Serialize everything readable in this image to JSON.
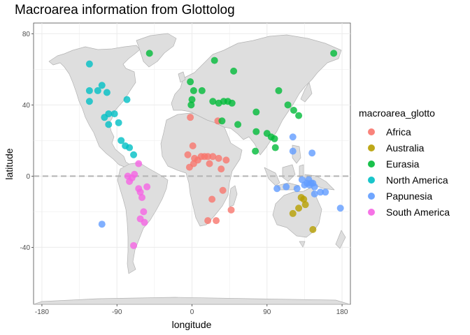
{
  "chart_data": {
    "type": "scatter",
    "title": "Macroarea information from Glottolog",
    "xlabel": "longitude",
    "ylabel": "latitude",
    "xlim": [
      -190,
      190
    ],
    "ylim": [
      -72,
      86
    ],
    "xticks": [
      -180,
      -90,
      0,
      90,
      180
    ],
    "yticks": [
      -40,
      0,
      40,
      80
    ],
    "xtick_labels": [
      "-180",
      "-90",
      "0",
      "90",
      "180"
    ],
    "ytick_labels": [
      "-40",
      "0",
      "40",
      "80"
    ],
    "grid": true,
    "reference_line": {
      "y": 0,
      "style": "dashed"
    },
    "basemap": "world countries",
    "legend": {
      "title": "macroarea_glotto",
      "placement": "right"
    },
    "series": [
      {
        "name": "Africa",
        "color": "#F8766D",
        "points": [
          [
            -2,
            33
          ],
          [
            -5,
            12
          ],
          [
            -3,
            5
          ],
          [
            1,
            17
          ],
          [
            3,
            10
          ],
          [
            2,
            7
          ],
          [
            7,
            9
          ],
          [
            11,
            11
          ],
          [
            15,
            11
          ],
          [
            19,
            11
          ],
          [
            21,
            7
          ],
          [
            25,
            11
          ],
          [
            31,
            31
          ],
          [
            32,
            10
          ],
          [
            35,
            4
          ],
          [
            41,
            9
          ],
          [
            37,
            -8
          ],
          [
            24,
            -13
          ],
          [
            19,
            -25
          ],
          [
            29,
            -25
          ],
          [
            47,
            -19
          ]
        ]
      },
      {
        "name": "Australia",
        "color": "#B79F00",
        "points": [
          [
            131,
            -12
          ],
          [
            134,
            -13
          ],
          [
            136,
            -16
          ],
          [
            128,
            -18
          ],
          [
            121,
            -21
          ],
          [
            145,
            -30
          ]
        ]
      },
      {
        "name": "Eurasia",
        "color": "#00BA38",
        "points": [
          [
            -51,
            69
          ],
          [
            -2,
            53
          ],
          [
            0,
            43
          ],
          [
            -1,
            40
          ],
          [
            2,
            48
          ],
          [
            12,
            48
          ],
          [
            25,
            42
          ],
          [
            27,
            65
          ],
          [
            32,
            41
          ],
          [
            38,
            42
          ],
          [
            43,
            42
          ],
          [
            48,
            41
          ],
          [
            36,
            31
          ],
          [
            50,
            59
          ],
          [
            55,
            29
          ],
          [
            77,
            36
          ],
          [
            77,
            25
          ],
          [
            76,
            14
          ],
          [
            90,
            24
          ],
          [
            95,
            22
          ],
          [
            99,
            21
          ],
          [
            100,
            16
          ],
          [
            104,
            48
          ],
          [
            115,
            40
          ],
          [
            122,
            37
          ],
          [
            128,
            34
          ],
          [
            170,
            69
          ]
        ]
      },
      {
        "name": "North America",
        "color": "#00BFC4",
        "points": [
          [
            -123,
            63
          ],
          [
            -123,
            48
          ],
          [
            -113,
            48
          ],
          [
            -108,
            51
          ],
          [
            -102,
            47
          ],
          [
            -123,
            42
          ],
          [
            -105,
            33
          ],
          [
            -100,
            35
          ],
          [
            -93,
            35
          ],
          [
            -100,
            29
          ],
          [
            -88,
            30
          ],
          [
            -78,
            43
          ],
          [
            -85,
            20
          ],
          [
            -80,
            17
          ],
          [
            -75,
            16
          ],
          [
            -70,
            12
          ]
        ]
      },
      {
        "name": "Papunesia",
        "color": "#619CFF",
        "points": [
          [
            -108,
            -27
          ],
          [
            121,
            22
          ],
          [
            121,
            14
          ],
          [
            144,
            13
          ],
          [
            102,
            -7
          ],
          [
            113,
            -6
          ],
          [
            126,
            -7
          ],
          [
            132,
            -2
          ],
          [
            135,
            -5
          ],
          [
            138,
            -4
          ],
          [
            140,
            -2
          ],
          [
            141,
            -5
          ],
          [
            143,
            -4
          ],
          [
            145,
            -4
          ],
          [
            147,
            -6
          ],
          [
            147,
            -10
          ],
          [
            154,
            -9
          ],
          [
            160,
            -9
          ],
          [
            178,
            -18
          ]
        ]
      },
      {
        "name": "South America",
        "color": "#F564E3",
        "points": [
          [
            -77,
            0
          ],
          [
            -75,
            -3
          ],
          [
            -72,
            -1
          ],
          [
            -69,
            1
          ],
          [
            -64,
            7
          ],
          [
            -64,
            -7
          ],
          [
            -62,
            -9
          ],
          [
            -54,
            -6
          ],
          [
            -60,
            -12
          ],
          [
            -58,
            -20
          ],
          [
            -62,
            -24
          ],
          [
            -57,
            -26
          ],
          [
            -70,
            -39
          ]
        ]
      }
    ]
  }
}
